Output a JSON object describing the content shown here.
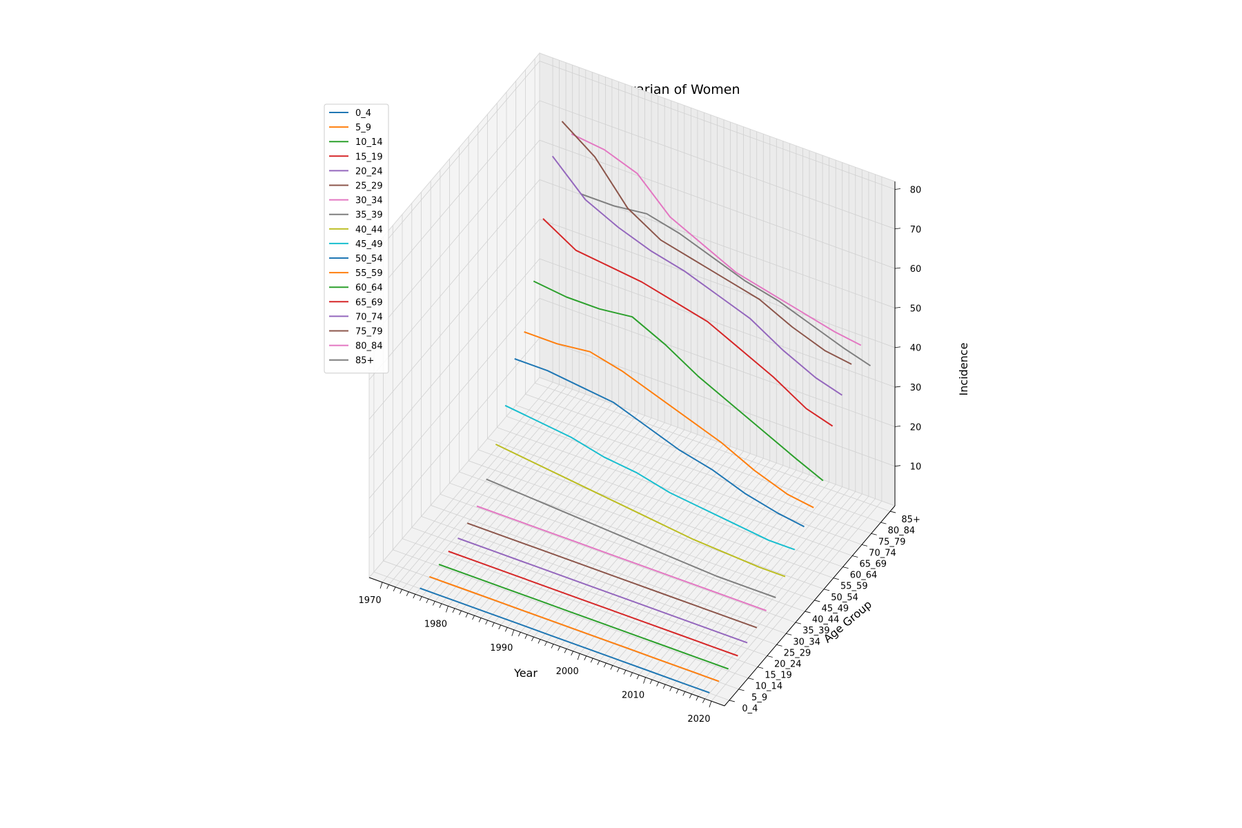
{
  "chart_data": {
    "type": "line",
    "view": "3d",
    "title": "Cancer type:ovarian of Women",
    "xlabel": "Year",
    "ylabel": "Age Group",
    "zlabel": "Incidence",
    "x_ticks": [
      "1970",
      "1980",
      "1990",
      "2000",
      "2010",
      "2020"
    ],
    "z_ticks": [
      "10",
      "20",
      "30",
      "40",
      "50",
      "60",
      "70",
      "80"
    ],
    "x_range": [
      1968,
      2022
    ],
    "z_range": [
      0,
      82
    ],
    "grid": true,
    "legend_position": "upper-left",
    "x": [
      1975,
      1980,
      1985,
      1990,
      1995,
      2000,
      2005,
      2010,
      2015,
      2019
    ],
    "series": [
      {
        "name": "0_4",
        "color": "#1f77b4",
        "values": [
          0.1,
          0.1,
          0.1,
          0.1,
          0.1,
          0.1,
          0.1,
          0.1,
          0.1,
          0.1
        ]
      },
      {
        "name": "5_9",
        "color": "#ff7f0e",
        "values": [
          0.2,
          0.2,
          0.2,
          0.2,
          0.2,
          0.2,
          0.2,
          0.2,
          0.2,
          0.2
        ]
      },
      {
        "name": "10_14",
        "color": "#2ca02c",
        "values": [
          0.5,
          0.5,
          0.5,
          0.5,
          0.5,
          0.5,
          0.5,
          0.5,
          0.5,
          0.5
        ]
      },
      {
        "name": "15_19",
        "color": "#d62728",
        "values": [
          1.0,
          1.0,
          1.0,
          1.0,
          1.0,
          1.0,
          1.0,
          1.0,
          1.0,
          1.0
        ]
      },
      {
        "name": "20_24",
        "color": "#9467bd",
        "values": [
          1.5,
          1.5,
          1.5,
          1.5,
          1.5,
          1.5,
          1.5,
          1.5,
          1.5,
          1.5
        ]
      },
      {
        "name": "25_29",
        "color": "#8c564b",
        "values": [
          2.5,
          2.5,
          2.5,
          2.5,
          2.5,
          2.5,
          2.5,
          2.5,
          2.5,
          2.5
        ]
      },
      {
        "name": "30_34",
        "color": "#e377c2",
        "values": [
          4,
          4,
          4,
          4,
          4,
          4,
          4,
          4,
          4,
          4
        ]
      },
      {
        "name": "35_39",
        "color": "#7f7f7f",
        "values": [
          8,
          7.5,
          7,
          6.5,
          6,
          5.5,
          5,
          4.5,
          4.5,
          4.5
        ]
      },
      {
        "name": "40_44",
        "color": "#bcbd22",
        "values": [
          14,
          13,
          12,
          11,
          10,
          9,
          8,
          7.5,
          7,
          7
        ]
      },
      {
        "name": "45_49",
        "color": "#17becf",
        "values": [
          21,
          20,
          19,
          17,
          16,
          14,
          13,
          12,
          11,
          11
        ]
      },
      {
        "name": "50_54",
        "color": "#1f77b4",
        "values": [
          30,
          30,
          29,
          28,
          25,
          22,
          20,
          17,
          15,
          14
        ]
      },
      {
        "name": "55_59",
        "color": "#ff7f0e",
        "values": [
          34,
          34,
          35,
          33,
          30,
          27,
          24,
          20,
          17,
          16
        ]
      },
      {
        "name": "60_64",
        "color": "#2ca02c",
        "values": [
          44,
          43,
          43,
          44,
          40,
          35,
          31,
          27,
          23,
          20
        ]
      },
      {
        "name": "65_69",
        "color": "#d62728",
        "values": [
          57,
          52,
          51,
          50,
          48,
          46,
          42,
          38,
          33,
          31
        ]
      },
      {
        "name": "70_74",
        "color": "#9467bd",
        "values": [
          70,
          62,
          58,
          55,
          53,
          50,
          47,
          42,
          38,
          36
        ]
      },
      {
        "name": "75_79",
        "color": "#8c564b",
        "values": [
          76,
          70,
          60,
          55,
          53,
          51,
          49,
          45,
          42,
          41
        ]
      },
      {
        "name": "80_84",
        "color": "#e377c2",
        "values": [
          70,
          69,
          66,
          58,
          54,
          50,
          48,
          46,
          44,
          43
        ]
      },
      {
        "name": "85+",
        "color": "#7f7f7f",
        "values": [
          52,
          52,
          53,
          51,
          48,
          45,
          43,
          40,
          37,
          35
        ]
      }
    ]
  }
}
